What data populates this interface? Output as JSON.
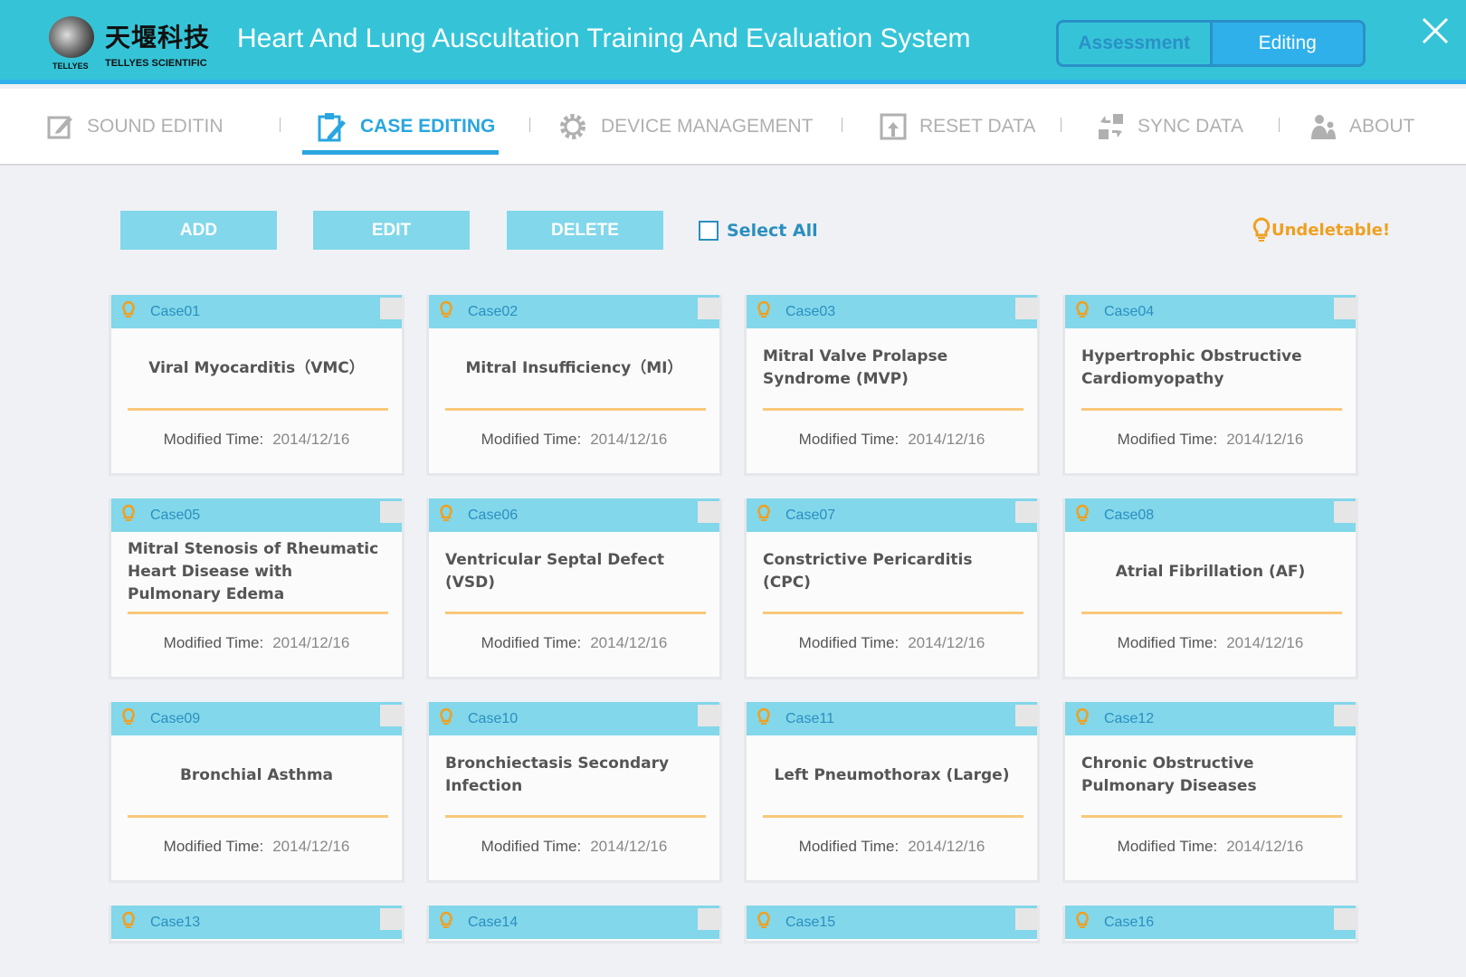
{
  "header": {
    "logo_cn": "天堰科技",
    "logo_en": "TELLYES SCIENTIFIC",
    "logo_mark": "TELLYES",
    "title": "Heart And Lung Auscultation Training And Evaluation System",
    "modes": [
      {
        "label": "Assessment",
        "active": false
      },
      {
        "label": "Editing",
        "active": true
      }
    ]
  },
  "nav": [
    {
      "label": "SOUND EDITIN",
      "icon": "edit-icon"
    },
    {
      "label": "CASE EDITING",
      "icon": "clipboard-icon",
      "active": true
    },
    {
      "label": "DEVICE MANAGEMENT",
      "icon": "gear-icon"
    },
    {
      "label": "RESET DATA",
      "icon": "reset-icon"
    },
    {
      "label": "SYNC DATA",
      "icon": "sync-icon"
    },
    {
      "label": "ABOUT",
      "icon": "users-icon"
    }
  ],
  "toolbar": {
    "add": "ADD",
    "edit": "EDIT",
    "delete": "DELETE",
    "select_all": "Select All",
    "undeletable": "Undeletable!"
  },
  "colors": {
    "header": "#35c4d7",
    "accent": "#29a6df",
    "card_header": "#82d7ea",
    "bulb": "#f0a020"
  },
  "time_label": "Modified Time:",
  "cases": [
    {
      "id": "Case01",
      "name": "Viral Myocarditis（VMC）",
      "date": "2014/12/16"
    },
    {
      "id": "Case02",
      "name": "Mitral Insufficiency（MI）",
      "date": "2014/12/16"
    },
    {
      "id": "Case03",
      "name": "Mitral Valve Prolapse Syndrome (MVP)",
      "date": "2014/12/16"
    },
    {
      "id": "Case04",
      "name": "Hypertrophic Obstructive Cardiomyopathy",
      "date": "2014/12/16"
    },
    {
      "id": "Case05",
      "name": "Mitral Stenosis of Rheumatic Heart Disease with Pulmonary Edema",
      "date": "2014/12/16"
    },
    {
      "id": "Case06",
      "name": "Ventricular Septal Defect (VSD)",
      "date": "2014/12/16"
    },
    {
      "id": "Case07",
      "name": "Constrictive Pericarditis (CPC)",
      "date": "2014/12/16"
    },
    {
      "id": "Case08",
      "name": "Atrial Fibrillation (AF)",
      "date": "2014/12/16"
    },
    {
      "id": "Case09",
      "name": "Bronchial Asthma",
      "date": "2014/12/16"
    },
    {
      "id": "Case10",
      "name": "Bronchiectasis Secondary Infection",
      "date": "2014/12/16"
    },
    {
      "id": "Case11",
      "name": "Left Pneumothorax (Large)",
      "date": "2014/12/16"
    },
    {
      "id": "Case12",
      "name": "Chronic Obstructive Pulmonary Diseases",
      "date": "2014/12/16"
    },
    {
      "id": "Case13"
    },
    {
      "id": "Case14"
    },
    {
      "id": "Case15"
    },
    {
      "id": "Case16"
    }
  ]
}
